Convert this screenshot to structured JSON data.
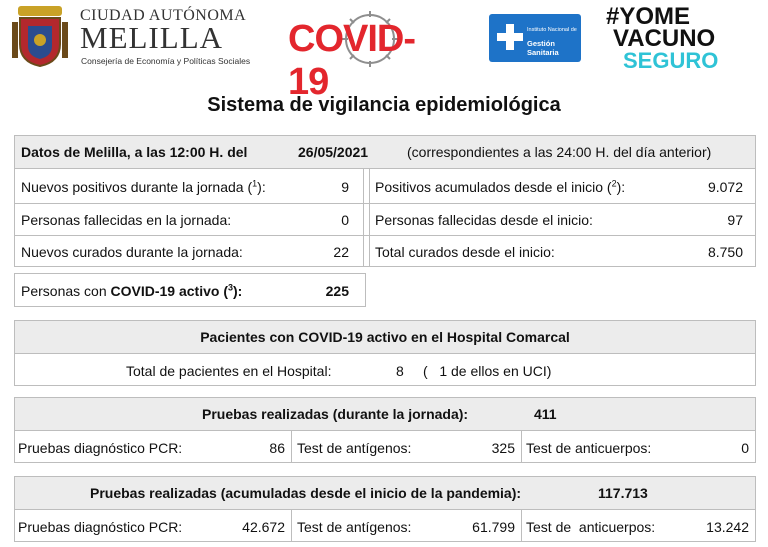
{
  "header": {
    "city_line1": "CIUDAD AUTÓNOMA",
    "city_line2": "MELILLA",
    "city_line3": "Consejería de Economía y Políticas Sociales",
    "covid_logo": "COVID-19",
    "ingesa_line1": "Instituto Nacional de",
    "ingesa_line2": "Gestión Sanitaria",
    "vacuno_line1": "#YOME",
    "vacuno_line2": "VACUNO",
    "vacuno_line3": "SEGURO"
  },
  "title": "Sistema de vigilancia epidemiológica",
  "daily": {
    "date_prefix": "Datos de Melilla, a  las 12:00 H. del",
    "date": "26/05/2021",
    "note": "(correspondientes a las 24:00 H. del día anterior)",
    "rows": [
      {
        "label_left": "Nuevos positivos durante la jornada (",
        "sup_left": "1",
        "label_left_end": "):",
        "value_left": "9",
        "label_right": "Positivos acumulados desde el inicio (",
        "sup_right": "2",
        "label_right_end": "):",
        "value_right": "9.072"
      },
      {
        "label_left": "Personas fallecidas en la jornada:",
        "value_left": "0",
        "label_right": "Personas fallecidas desde el inicio:",
        "value_right": "97"
      },
      {
        "label_left": "Nuevos curados durante la jornada:",
        "value_left": "22",
        "label_right": "Total curados desde el inicio:",
        "value_right": "8.750"
      }
    ]
  },
  "active": {
    "label_pre": "Personas con",
    "label_bold": "COVID-19 activo",
    "label_paren_open": "(",
    "sup": "3",
    "label_paren_close": "):",
    "value": "225"
  },
  "hospital": {
    "heading": "Pacientes con COVID-19 activo en el Hospital Comarcal",
    "total_label": "Total de pacientes en el Hospital:",
    "total_value": "8",
    "uci_text": "(   1 de ellos en UCI)"
  },
  "tests_daily": {
    "heading": "Pruebas realizadas (durante la jornada):",
    "heading_value": "411",
    "pcr_label": "Pruebas diagnóstico PCR:",
    "pcr_value": "86",
    "antigen_label": "Test de antígenos:",
    "antigen_value": "325",
    "antibody_label": "Test de anticuerpos:",
    "antibody_value": "0"
  },
  "tests_total": {
    "heading": "Pruebas realizadas (acumuladas desde el inicio de la pandemia):",
    "heading_value": "117.713",
    "pcr_label": "Pruebas diagnóstico PCR:",
    "pcr_value": "42.672",
    "antigen_label": "Test de antígenos:",
    "antigen_value": "61.799",
    "antibody_label": "Test de  anticuerpos:",
    "antibody_value": "13.242"
  },
  "colors": {
    "covid_red": "#e3262d",
    "ingesa_blue": "#1e73c8",
    "vacuno_cyan": "#2fc3d6",
    "header_gray": "#ececec"
  }
}
